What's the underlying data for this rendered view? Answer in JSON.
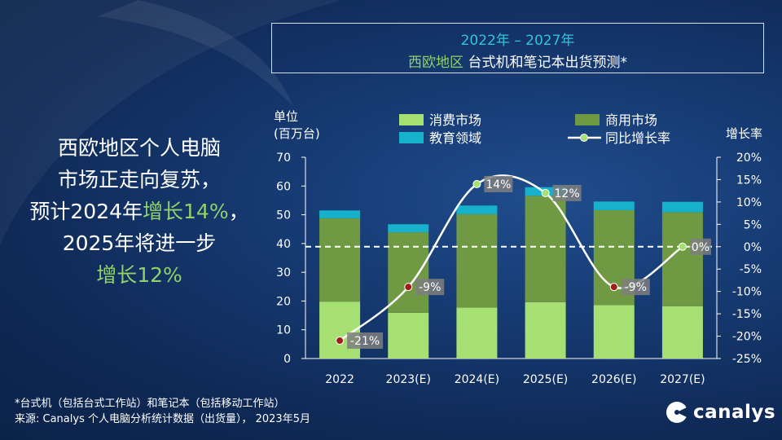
{
  "title": {
    "line1": "2022年 – 2027年",
    "region": "西欧地区",
    "line2": " 台式机和笔记本出货预测*"
  },
  "headline": {
    "part1": "西欧地区个人电脑",
    "part2": "市场正走向复苏，",
    "part3a": "预计2024年",
    "part3b": "增长14%",
    "part3c": "，",
    "part4": "2025年将进一步",
    "part5": "增长12%"
  },
  "footnote": {
    "line1": "*台式机（包括台式工作站）和笔记本（包括移动工作站）",
    "line2": "来源: Canalys 个人电脑分析统计数据（出货量）， 2023年5月"
  },
  "brand": {
    "name": "canalys"
  },
  "chart_data": {
    "type": "bar",
    "stacked": true,
    "title": "2022年 – 2027年 西欧地区 台式机和笔记本出货预测*",
    "ylabel_line1": "单位",
    "ylabel_line2": "(百万台)",
    "y2label": "增长率",
    "ylim": [
      0,
      70
    ],
    "yticks": [
      0,
      10,
      20,
      30,
      40,
      50,
      60,
      70
    ],
    "y2lim": [
      -25,
      20
    ],
    "y2ticks": [
      "-25%",
      "-20%",
      "-15%",
      "-10%",
      "-5%",
      "0%",
      "5%",
      "10%",
      "15%",
      "20%"
    ],
    "categories": [
      "2022",
      "2023(E)",
      "2024(E)",
      "2025(E)",
      "2026(E)",
      "2027(E)"
    ],
    "series": [
      {
        "name": "消费市场",
        "color": "#a6df72",
        "values": [
          19.8,
          15.9,
          17.7,
          19.6,
          18.6,
          18.2
        ]
      },
      {
        "name": "商用市场",
        "color": "#6f9a43",
        "values": [
          29.0,
          28.0,
          32.5,
          37.0,
          33.0,
          32.7
        ]
      },
      {
        "name": "教育领域",
        "color": "#16b1cb",
        "values": [
          2.7,
          2.8,
          3.0,
          3.0,
          3.0,
          3.6
        ]
      }
    ],
    "growth": {
      "name": "同比增长率",
      "values": [
        -21,
        -9,
        14,
        12,
        -9,
        0
      ],
      "labels": [
        "-21%",
        "-9%",
        "14%",
        "12%",
        "-9%",
        "0%"
      ],
      "colors": [
        "#a01c1c",
        "#a01c1c",
        "#a6df72",
        "#a6df72",
        "#a01c1c",
        "#a6df72"
      ]
    }
  }
}
